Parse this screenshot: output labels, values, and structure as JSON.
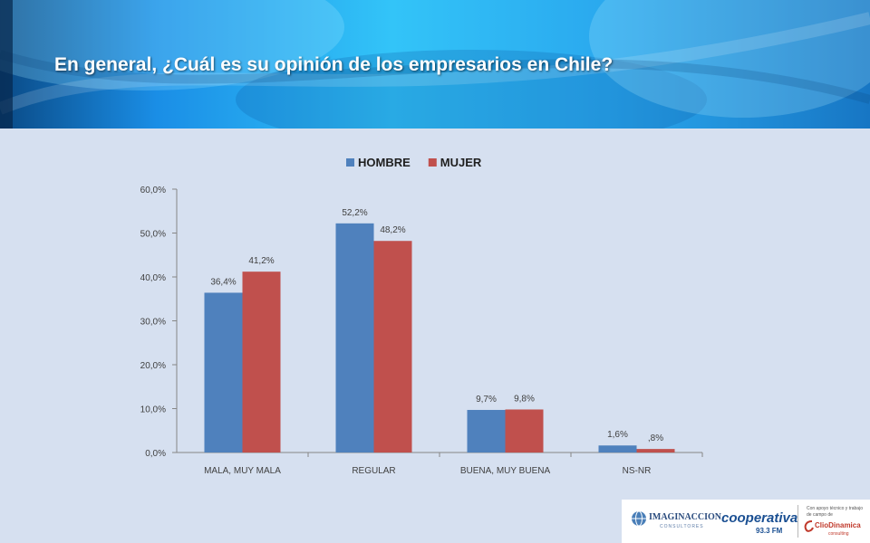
{
  "title": "En general, ¿Cuál es su opinión de los empresarios en Chile?",
  "colors": {
    "hombre": "#4f81bd",
    "mujer": "#c0504d",
    "background": "#d6e0f0",
    "banner": "#2ab8f4"
  },
  "chart_data": {
    "type": "bar",
    "categories": [
      "MALA, MUY MALA",
      "REGULAR",
      "BUENA, MUY BUENA",
      "NS-NR"
    ],
    "series": [
      {
        "name": "HOMBRE",
        "values": [
          36.4,
          52.2,
          9.7,
          1.6
        ],
        "labels": [
          "36,4%",
          "52,2%",
          "9,7%",
          "1,6%"
        ]
      },
      {
        "name": "MUJER",
        "values": [
          41.2,
          48.2,
          9.8,
          0.8
        ],
        "labels": [
          "41,2%",
          "48,2%",
          "9,8%",
          ",8%"
        ]
      }
    ],
    "ylim": [
      0,
      60
    ],
    "yticks": [
      0,
      10,
      20,
      30,
      40,
      50,
      60
    ],
    "ytick_labels": [
      "0,0%",
      "10,0%",
      "20,0%",
      "30,0%",
      "40,0%",
      "50,0%",
      "60,0%"
    ],
    "grid": false,
    "legend_position": "top"
  },
  "logos": {
    "imaginaccion": "IMAGINACCION",
    "imaginaccion_sub": "CONSULTORES",
    "cooperativa": "cooperativa",
    "cooperativa_freq": "93.3 FM",
    "support_line1": "Con apoyo técnico y trabajo",
    "support_line2": "de campo de",
    "cliodinamica": "ClioDinamica",
    "cliodinamica_sub": "consulting"
  }
}
